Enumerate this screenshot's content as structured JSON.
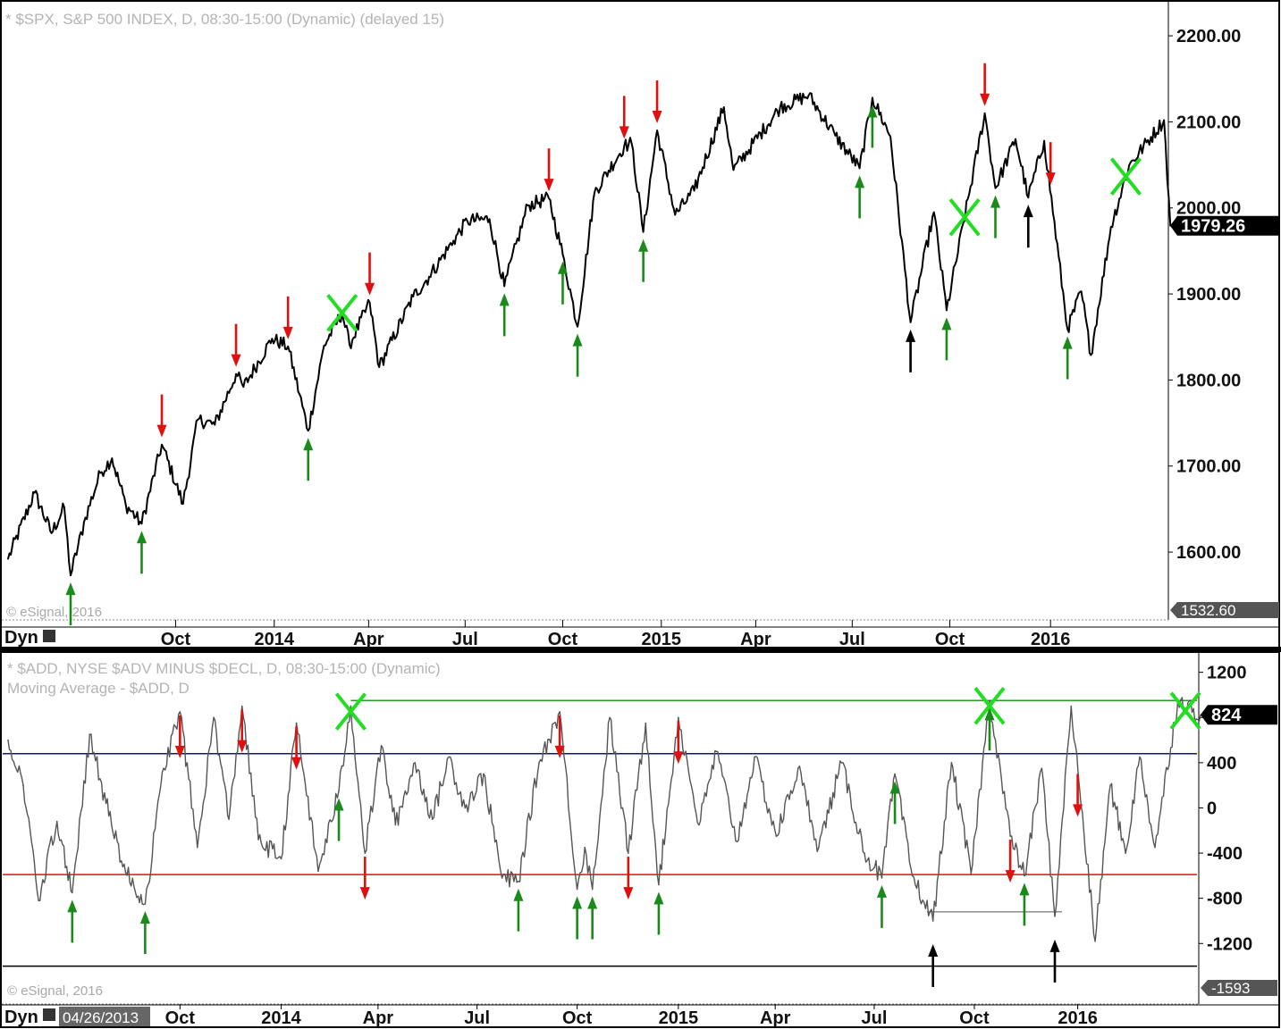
{
  "colors": {
    "price_line": "#000000",
    "adline": "#555555",
    "up_arrow": "#1a8a1a",
    "down_arrow": "#e01010",
    "black_arrow": "#000000",
    "cross": "#22dd22",
    "level_green": "#2a9a2a",
    "level_blue": "#1010a0",
    "level_red": "#dd1010"
  },
  "chart_data": [
    {
      "type": "line",
      "title": "* $SPX, S&P 500 INDEX, D, 08:30-15:00 (Dynamic) (delayed 15)",
      "copyright": "© eSignal, 2016",
      "corner_label": "Dyn",
      "ylim": [
        1532.6,
        2225
      ],
      "ytick_labels": [
        "2200.00",
        "2100.00",
        "2000.00",
        "1900.00",
        "1800.00",
        "1700.00",
        "1600.00"
      ],
      "ytick_values": [
        2200,
        2100,
        2000,
        1900,
        1800,
        1700,
        1600
      ],
      "y_min_label": "1532.60",
      "last_value": 1979.26,
      "last_value_label": "1979.26",
      "xtick_labels": [
        "Oct",
        "2014",
        "Apr",
        "Jul",
        "Oct",
        "2015",
        "Apr",
        "Jul",
        "Oct",
        "2016"
      ],
      "xtick_dates": [
        "2013-10-01",
        "2014-01-02",
        "2014-04-01",
        "2014-07-01",
        "2014-10-01",
        "2015-01-02",
        "2015-04-01",
        "2015-07-01",
        "2015-10-01",
        "2016-01-04"
      ],
      "x_range": [
        "2013-04-26",
        "2016-04-30"
      ],
      "series": [
        {
          "x": [
            "2013-04-26",
            "2013-05-21",
            "2013-06-06",
            "2013-06-18",
            "2013-06-24",
            "2013-07-08",
            "2013-07-22",
            "2013-08-02",
            "2013-08-15",
            "2013-08-30",
            "2013-09-18",
            "2013-10-08",
            "2013-10-22",
            "2013-11-07",
            "2013-11-27",
            "2013-12-04",
            "2013-12-31",
            "2014-01-15",
            "2014-02-03",
            "2014-02-18",
            "2014-03-07",
            "2014-03-14",
            "2014-04-02",
            "2014-04-11",
            "2014-05-13",
            "2014-05-28",
            "2014-06-20",
            "2014-07-03",
            "2014-07-24",
            "2014-08-07",
            "2014-08-29",
            "2014-09-18",
            "2014-10-01",
            "2014-10-15",
            "2014-10-31",
            "2014-11-28",
            "2014-12-05",
            "2014-12-16",
            "2014-12-29",
            "2015-01-15",
            "2015-02-02",
            "2015-03-02",
            "2015-03-11",
            "2015-04-24",
            "2015-05-21",
            "2015-06-15",
            "2015-07-08",
            "2015-07-20",
            "2015-08-06",
            "2015-08-25",
            "2015-09-16",
            "2015-09-28",
            "2015-11-03",
            "2015-11-13",
            "2015-12-02",
            "2015-12-14",
            "2015-12-29",
            "2016-01-20",
            "2016-02-02",
            "2016-02-11",
            "2016-03-01",
            "2016-03-18",
            "2016-04-20",
            "2016-04-26"
          ],
          "y": [
            1592,
            1669,
            1622,
            1652,
            1573,
            1640,
            1692,
            1709,
            1655,
            1633,
            1725,
            1656,
            1754,
            1748,
            1807,
            1792,
            1848,
            1839,
            1741,
            1840,
            1878,
            1841,
            1890,
            1815,
            1897,
            1920,
            1962,
            1985,
            1987,
            1909,
            2003,
            2011,
            1946,
            1862,
            2018,
            2072,
            2075,
            1972,
            2090,
            1992,
            2020,
            2117,
            2044,
            2117,
            2131,
            2084,
            2046,
            2128,
            2083,
            1867,
            1995,
            1881,
            2110,
            2023,
            2080,
            2012,
            2078,
            1859,
            1903,
            1829,
            1978,
            2049,
            2102,
            1979
          ]
        }
      ],
      "markers": {
        "up_green": [
          "2013-06-24",
          "2013-08-30",
          "2014-02-03",
          "2014-08-07",
          "2014-10-01",
          "2014-10-15",
          "2014-12-16",
          "2015-07-08",
          "2015-07-20",
          "2015-09-28",
          "2015-11-13",
          "2016-01-20"
        ],
        "down_red": [
          "2013-09-18",
          "2013-11-27",
          "2014-01-15",
          "2014-04-02",
          "2014-09-18",
          "2014-11-28",
          "2014-12-29",
          "2015-11-03",
          "2016-01-04"
        ],
        "up_black": [
          "2015-08-25",
          "2015-12-14"
        ],
        "cross": [
          "2014-03-07",
          "2015-10-15",
          "2016-03-15"
        ]
      }
    },
    {
      "type": "line",
      "title": "* $ADD, NYSE $ADV MINUS $DECL, D, 08:30-15:00 (Dynamic)",
      "subtitle": "Moving Average - $ADD, D",
      "copyright": "© eSignal, 2016",
      "corner_label": "Dyn",
      "start_date_label": "04/26/2013",
      "ylim": [
        -1593,
        1300
      ],
      "ytick_labels": [
        "1200",
        "800",
        "400",
        "0",
        "-400",
        "-800",
        "-1200"
      ],
      "ytick_values": [
        1200,
        800,
        400,
        0,
        -400,
        -800,
        -1200
      ],
      "y_min_label": "-1593",
      "last_value": 824,
      "last_value_label": "824",
      "xtick_labels": [
        "Oct",
        "2014",
        "Apr",
        "Jul",
        "Oct",
        "2015",
        "Apr",
        "Jul",
        "Oct",
        "2016"
      ],
      "xtick_dates": [
        "2013-10-01",
        "2014-01-02",
        "2014-04-01",
        "2014-07-01",
        "2014-10-01",
        "2015-01-02",
        "2015-04-01",
        "2015-07-01",
        "2015-10-01",
        "2016-01-04"
      ],
      "x_range": [
        "2013-04-26",
        "2016-04-30"
      ],
      "levels": {
        "green": 950,
        "blue": 480,
        "red": -590,
        "black": -1400,
        "support": -920
      },
      "support_range": [
        "2015-08-25",
        "2015-12-14"
      ],
      "series": [
        {
          "x": [
            "2013-04-26",
            "2013-05-10",
            "2013-05-24",
            "2013-06-10",
            "2013-06-24",
            "2013-07-10",
            "2013-07-25",
            "2013-08-12",
            "2013-08-30",
            "2013-09-16",
            "2013-10-01",
            "2013-10-17",
            "2013-11-01",
            "2013-11-15",
            "2013-11-27",
            "2013-12-12",
            "2014-01-02",
            "2014-01-16",
            "2014-02-05",
            "2014-02-24",
            "2014-03-07",
            "2014-03-20",
            "2014-04-04",
            "2014-04-17",
            "2014-05-05",
            "2014-05-21",
            "2014-06-05",
            "2014-06-20",
            "2014-07-07",
            "2014-07-24",
            "2014-08-08",
            "2014-08-27",
            "2014-09-15",
            "2014-10-01",
            "2014-10-08",
            "2014-10-15",
            "2014-10-31",
            "2014-11-17",
            "2014-12-03",
            "2014-12-15",
            "2015-01-02",
            "2015-01-21",
            "2015-02-06",
            "2015-02-25",
            "2015-03-13",
            "2015-04-02",
            "2015-04-22",
            "2015-05-11",
            "2015-06-01",
            "2015-06-22",
            "2015-07-08",
            "2015-07-20",
            "2015-08-05",
            "2015-08-24",
            "2015-09-10",
            "2015-09-28",
            "2015-10-15",
            "2015-11-03",
            "2015-11-16",
            "2015-12-02",
            "2015-12-14",
            "2015-12-29",
            "2016-01-20",
            "2016-02-03",
            "2016-02-17",
            "2016-03-01",
            "2016-03-15",
            "2016-04-05",
            "2016-04-26"
          ],
          "y": [
            600,
            200,
            -820,
            -120,
            -750,
            650,
            40,
            -570,
            -850,
            350,
            850,
            -350,
            800,
            -100,
            900,
            -280,
            -450,
            750,
            -560,
            150,
            900,
            -400,
            550,
            -150,
            400,
            -100,
            450,
            0,
            300,
            -620,
            -650,
            400,
            850,
            -720,
            -350,
            -720,
            800,
            -400,
            750,
            -680,
            800,
            -150,
            500,
            -300,
            450,
            -250,
            350,
            -350,
            400,
            -400,
            -620,
            300,
            -600,
            -1000,
            400,
            -580,
            950,
            -250,
            -600,
            350,
            -960,
            900,
            -1180,
            200,
            -400,
            450,
            -350,
            950,
            824
          ]
        }
      ],
      "markers": {
        "up_green": [
          "2013-06-24",
          "2013-08-30",
          "2014-02-24",
          "2014-08-08",
          "2014-10-01",
          "2014-10-15",
          "2014-12-15",
          "2015-07-08",
          "2015-07-20",
          "2015-10-15",
          "2015-11-16"
        ],
        "down_red": [
          "2013-10-01",
          "2013-11-27",
          "2014-01-16",
          "2014-03-20",
          "2014-09-15",
          "2014-11-17",
          "2015-01-02",
          "2015-11-03",
          "2016-01-04"
        ],
        "up_black": [
          "2015-08-24",
          "2015-12-14"
        ],
        "cross": [
          "2014-03-07",
          "2015-10-15",
          "2016-04-12"
        ]
      }
    }
  ]
}
